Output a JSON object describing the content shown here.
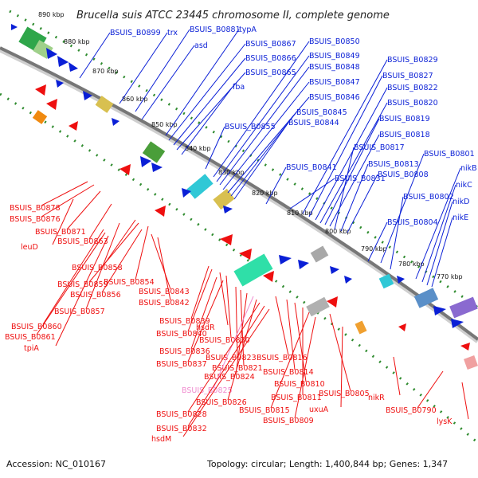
{
  "title": "Brucella suis ATCC 23445 chromosome II, complete genome",
  "footer": {
    "accession": "Accession: NC_010167",
    "stats": "Topology: circular; Length: 1,400,844 bp; Genes: 1,347"
  },
  "colors": {
    "forward_gene": "#0a1fd6",
    "reverse_gene": "#ee0f0f",
    "highlight_label": "#f08ccf",
    "backbone": "#7a7a7a",
    "dotted_ring": "#2e8b2e"
  },
  "ticks": [
    {
      "text": "890 kbp"
    },
    {
      "text": "880 kbp"
    },
    {
      "text": "870 kbp"
    },
    {
      "text": "860 kbp"
    },
    {
      "text": "850 kbp"
    },
    {
      "text": "840 kbp"
    },
    {
      "text": "830 kbp"
    },
    {
      "text": "820 kbp"
    },
    {
      "text": "810 kbp"
    },
    {
      "text": "800 kbp"
    },
    {
      "text": "790 kbp"
    },
    {
      "text": "780 kbp"
    },
    {
      "text": "770 kbp"
    }
  ],
  "forward_labels": [
    "BSUIS_B0899",
    "trx",
    "BSUIS_B0881",
    "asd",
    "typA",
    "BSUIS_B0867",
    "BSUIS_B0866",
    "BSUIS_B0865",
    "fba",
    "BSUIS_B0850",
    "BSUIS_B0849",
    "BSUIS_B0848",
    "BSUIS_B0847",
    "BSUIS_B0846",
    "BSUIS_B0845",
    "BSUIS_B0844",
    "BSUIS_B0855",
    "BSUIS_B0829",
    "BSUIS_B0827",
    "BSUIS_B0822",
    "BSUIS_B0820",
    "BSUIS_B0819",
    "BSUIS_B0818",
    "BSUIS_B0817",
    "BSUIS_B0813",
    "BSUIS_B0808",
    "BSUIS_B0801",
    "nikB",
    "BSUIS_B0841",
    "BSUIS_B0831",
    "nikC",
    "BSUIS_B0802",
    "nikD",
    "nikE",
    "BSUIS_B0804"
  ],
  "reverse_labels": [
    "BSUIS_B0878",
    "BSUIS_B0876",
    "BSUIS_B0871",
    "leuD",
    "BSUIS_B0863",
    "BSUIS_B0858",
    "BSUIS_B0859",
    "BSUIS_B0854",
    "BSUIS_B0856",
    "BSUIS_B0843",
    "BSUIS_B0857",
    "BSUIS_B0842",
    "BSUIS_B0860",
    "BSUIS_B0861",
    "tpiA",
    "BSUIS_B0839",
    "BSUIS_B0840",
    "hsdR",
    "BSUIS_B0830",
    "BSUIS_B0836",
    "BSUIS_B0837",
    "BSUIS_B0823",
    "BSUIS_B0816",
    "BSUIS_B0821",
    "BSUIS_B0814",
    "BSUIS_B0824",
    "BSUIS_B0810",
    "BSUIS_B0825",
    "BSUIS_B0811",
    "BSUIS_B0805",
    "BSUIS_B0826",
    "BSUIS_B0815",
    "BSUIS_B0809",
    "nikR",
    "BSUIS_B0790",
    "BSUIS_B0828",
    "uxuA",
    "BSUIS_B0832",
    "hsdM",
    "lysK"
  ]
}
